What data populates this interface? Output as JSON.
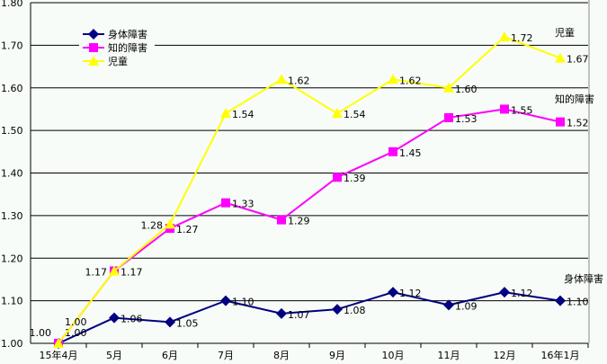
{
  "chart_data": {
    "type": "line",
    "categories": [
      "15年4月",
      "5月",
      "6月",
      "7月",
      "8月",
      "9月",
      "10月",
      "11月",
      "12月",
      "16年1月"
    ],
    "ylim": [
      1.0,
      1.8
    ],
    "yticks": [
      "1.00",
      "1.10",
      "1.20",
      "1.30",
      "1.40",
      "1.50",
      "1.60",
      "1.70",
      "1.80"
    ],
    "grid": true,
    "legend_position": "top-left",
    "series": [
      {
        "name": "身体障害",
        "color": "#000080",
        "marker": "diamond",
        "values": [
          1.0,
          1.06,
          1.05,
          1.1,
          1.07,
          1.08,
          1.12,
          1.09,
          1.12,
          1.1
        ]
      },
      {
        "name": "知的障害",
        "color": "#ff00ff",
        "marker": "square",
        "values": [
          1.0,
          1.17,
          1.27,
          1.33,
          1.29,
          1.39,
          1.45,
          1.53,
          1.55,
          1.52
        ]
      },
      {
        "name": "児童",
        "color": "#ffff00",
        "marker": "triangle",
        "values": [
          1.0,
          1.17,
          1.28,
          1.54,
          1.62,
          1.54,
          1.62,
          1.6,
          1.72,
          1.67
        ]
      }
    ],
    "annotations": [
      "児童",
      "知的障害",
      "身体障害"
    ]
  }
}
